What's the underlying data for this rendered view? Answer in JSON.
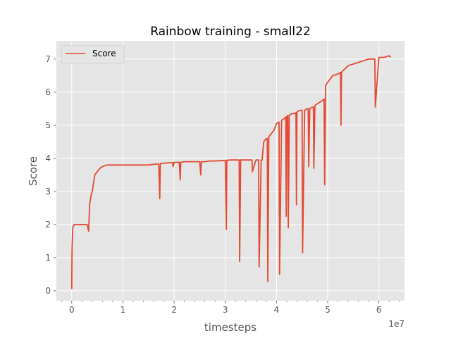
{
  "chart_data": {
    "type": "line",
    "title": "Rainbow training - small22",
    "xlabel": "timesteps",
    "ylabel": "Score",
    "x_offset_label": "1e7",
    "xlim": [
      -0.3,
      6.5
    ],
    "ylim": [
      -0.3,
      7.55
    ],
    "x_ticks": [
      0,
      1,
      2,
      3,
      4,
      5,
      6
    ],
    "x_tick_labels": [
      "0",
      "1",
      "2",
      "3",
      "4",
      "5",
      "6"
    ],
    "y_ticks": [
      0,
      1,
      2,
      3,
      4,
      5,
      6,
      7
    ],
    "y_tick_labels": [
      "0",
      "1",
      "2",
      "3",
      "4",
      "5",
      "6",
      "7"
    ],
    "grid": true,
    "legend": "top-left",
    "colors": {
      "line": "#e24a33",
      "plot_bg": "#e5e5e5",
      "grid": "#ffffff"
    },
    "series": [
      {
        "name": "Score",
        "x": [
          0,
          0.005,
          0.02,
          0.05,
          0.1,
          0.2,
          0.3,
          0.33,
          0.35,
          0.38,
          0.4,
          0.45,
          0.5,
          0.55,
          0.6,
          0.65,
          0.7,
          0.8,
          0.9,
          1.0,
          1.1,
          1.2,
          1.3,
          1.4,
          1.5,
          1.6,
          1.7,
          1.72,
          1.73,
          1.75,
          1.8,
          1.9,
          1.97,
          1.98,
          2.0,
          2.1,
          2.12,
          2.13,
          2.2,
          2.3,
          2.4,
          2.5,
          2.52,
          2.53,
          2.6,
          2.7,
          2.8,
          2.9,
          3.0,
          3.02,
          3.03,
          3.1,
          3.2,
          3.27,
          3.28,
          3.3,
          3.4,
          3.5,
          3.52,
          3.53,
          3.6,
          3.65,
          3.66,
          3.7,
          3.72,
          3.75,
          3.8,
          3.82,
          3.83,
          3.85,
          3.9,
          3.95,
          4.0,
          4.05,
          4.06,
          4.1,
          4.15,
          4.18,
          4.19,
          4.2,
          4.22,
          4.23,
          4.25,
          4.3,
          4.35,
          4.38,
          4.39,
          4.4,
          4.45,
          4.5,
          4.51,
          4.55,
          4.6,
          4.62,
          4.63,
          4.65,
          4.7,
          4.72,
          4.73,
          4.75,
          4.8,
          4.9,
          4.93,
          4.94,
          4.96,
          5.0,
          5.1,
          5.2,
          5.25,
          5.26,
          5.27,
          5.3,
          5.4,
          5.5,
          5.6,
          5.7,
          5.8,
          5.9,
          5.92,
          5.93,
          6.0,
          6.1,
          6.2,
          6.23
        ],
        "y": [
          0.05,
          1.2,
          1.9,
          2.0,
          2.0,
          2.0,
          2.0,
          1.8,
          2.6,
          2.9,
          3.0,
          3.5,
          3.6,
          3.7,
          3.75,
          3.78,
          3.8,
          3.8,
          3.8,
          3.8,
          3.8,
          3.8,
          3.8,
          3.8,
          3.8,
          3.82,
          3.83,
          2.78,
          3.83,
          3.85,
          3.85,
          3.87,
          3.87,
          3.75,
          3.88,
          3.88,
          3.35,
          3.88,
          3.9,
          3.9,
          3.9,
          3.9,
          3.5,
          3.9,
          3.9,
          3.92,
          3.92,
          3.93,
          3.94,
          1.85,
          3.94,
          3.95,
          3.95,
          3.95,
          0.88,
          3.95,
          3.95,
          3.95,
          3.95,
          3.6,
          3.95,
          3.95,
          0.72,
          3.95,
          3.95,
          4.5,
          4.6,
          4.6,
          0.28,
          4.65,
          4.75,
          4.85,
          5.05,
          5.1,
          0.5,
          5.15,
          5.2,
          5.25,
          2.25,
          5.25,
          5.3,
          1.9,
          5.3,
          5.35,
          5.35,
          5.38,
          2.6,
          5.4,
          5.45,
          5.45,
          1.15,
          5.45,
          5.5,
          5.5,
          3.75,
          5.5,
          5.55,
          5.55,
          3.7,
          5.6,
          5.65,
          5.75,
          5.8,
          3.2,
          6.2,
          6.3,
          6.5,
          6.55,
          6.6,
          5.0,
          6.6,
          6.65,
          6.8,
          6.85,
          6.9,
          6.95,
          7.0,
          7.0,
          7.0,
          5.55,
          7.05,
          7.05,
          7.1,
          7.05
        ]
      }
    ]
  }
}
